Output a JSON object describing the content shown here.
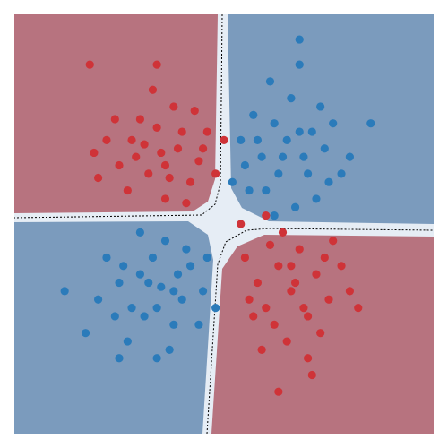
{
  "chart_data": {
    "type": "scatter",
    "xlim": [
      0,
      100
    ],
    "ylim": [
      0,
      100
    ],
    "series": [
      {
        "color": "#cf3338",
        "x": [
          35,
          28,
          40,
          32,
          44,
          25,
          38,
          30,
          42,
          36,
          22,
          46,
          33,
          27,
          39,
          48,
          20,
          34,
          43,
          29,
          37,
          24,
          41,
          31,
          45,
          19,
          50,
          36,
          18,
          34,
          66,
          60,
          72,
          63,
          70,
          58,
          75,
          65,
          68,
          62,
          78,
          55,
          73,
          67,
          61,
          80,
          57,
          70,
          64,
          76,
          59,
          69,
          74,
          56,
          66,
          82,
          71,
          60,
          54,
          63
        ],
        "values": [
          67,
          70,
          72,
          62,
          65,
          64,
          78,
          75,
          60,
          56,
          70,
          72,
          82,
          58,
          68,
          62,
          61,
          73,
          77,
          66,
          61,
          75,
          55,
          69,
          68,
          67,
          70,
          64,
          88,
          88,
          34,
          30,
          38,
          40,
          28,
          36,
          32,
          22,
          44,
          26,
          40,
          42,
          24,
          36,
          45,
          34,
          28,
          18,
          48,
          46,
          20,
          30,
          42,
          32,
          40,
          30,
          14,
          52,
          50,
          10
        ]
      },
      {
        "color": "#2b7bba",
        "x": [
          64,
          58,
          70,
          62,
          68,
          55,
          74,
          60,
          66,
          72,
          57,
          76,
          63,
          69,
          52,
          78,
          61,
          67,
          73,
          59,
          65,
          71,
          56,
          80,
          62,
          75,
          68,
          54,
          85,
          68,
          35,
          30,
          40,
          33,
          28,
          42,
          25,
          38,
          36,
          31,
          22,
          45,
          27,
          39,
          34,
          20,
          44,
          30,
          41,
          24,
          37,
          32,
          46,
          26,
          38,
          17,
          34,
          48,
          12,
          25
        ],
        "values": [
          66,
          70,
          62,
          74,
          72,
          64,
          68,
          58,
          80,
          56,
          76,
          74,
          62,
          66,
          60,
          62,
          84,
          54,
          78,
          66,
          70,
          72,
          58,
          66,
          52,
          60,
          88,
          70,
          74,
          94,
          35,
          38,
          32,
          42,
          30,
          40,
          36,
          26,
          46,
          28,
          42,
          34,
          22,
          38,
          30,
          32,
          26,
          48,
          44,
          28,
          20,
          36,
          42,
          40,
          34,
          24,
          18,
          30,
          34,
          18
        ]
      }
    ]
  }
}
